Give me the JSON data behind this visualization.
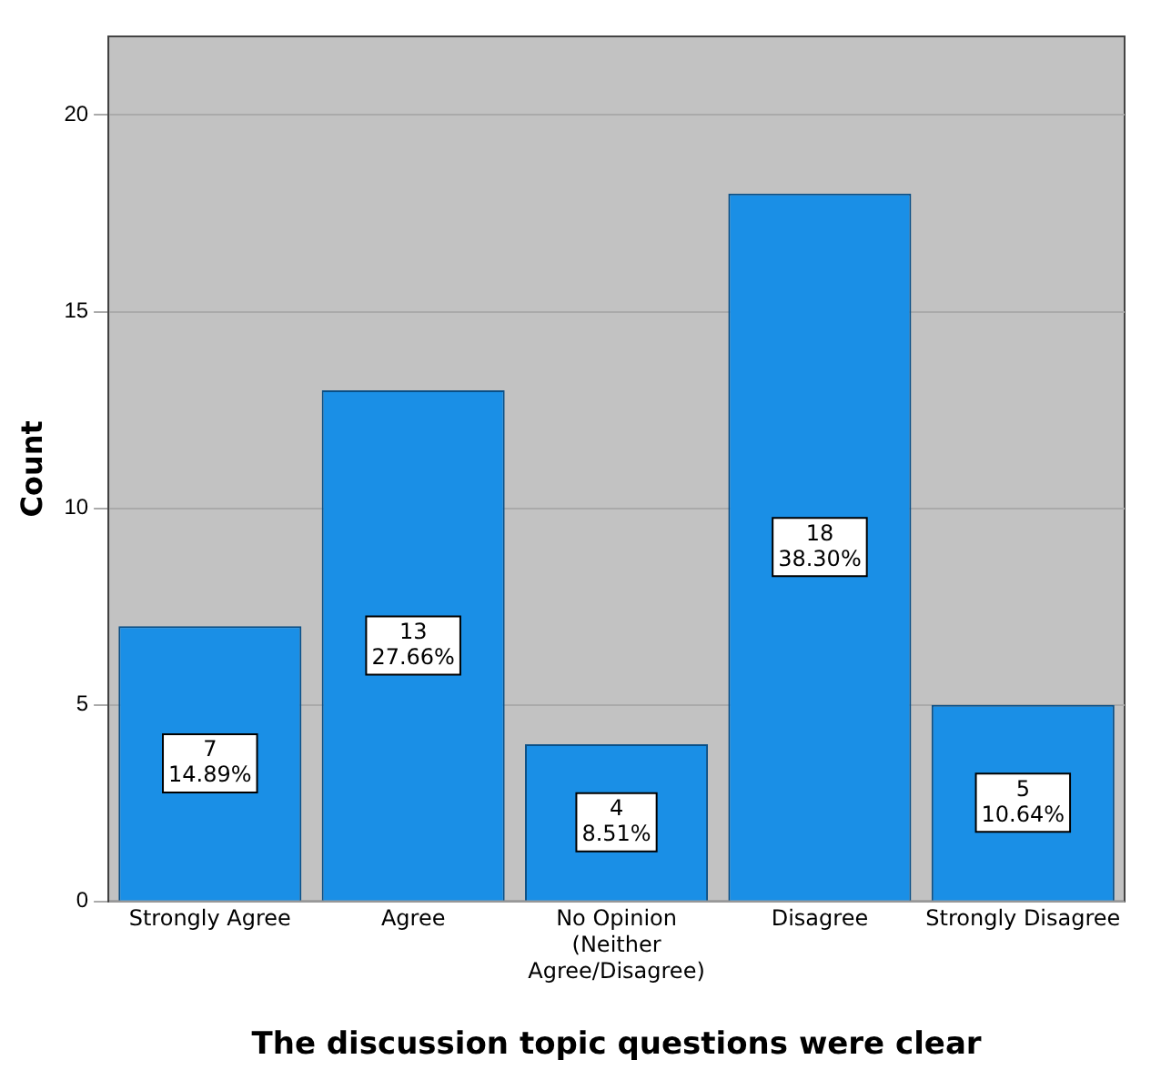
{
  "chart_data": {
    "type": "bar",
    "xlabel": "The discussion topic questions were clear",
    "ylabel": "Count",
    "categories": [
      "Strongly Agree",
      "Agree",
      "No Opinion (Neither Agree/Disagree)",
      "Disagree",
      "Strongly Disagree"
    ],
    "values": [
      7,
      13,
      4,
      18,
      5
    ],
    "value_labels": [
      "7\n14.89%",
      "13\n27.66%",
      "4\n8.51%",
      "18\n38.30%",
      "5\n10.64%"
    ],
    "color": "#1a8fe6",
    "ylim": [
      0,
      22
    ],
    "yticks": [
      0,
      5,
      10,
      15,
      20
    ],
    "grid": "y",
    "legend": false
  }
}
